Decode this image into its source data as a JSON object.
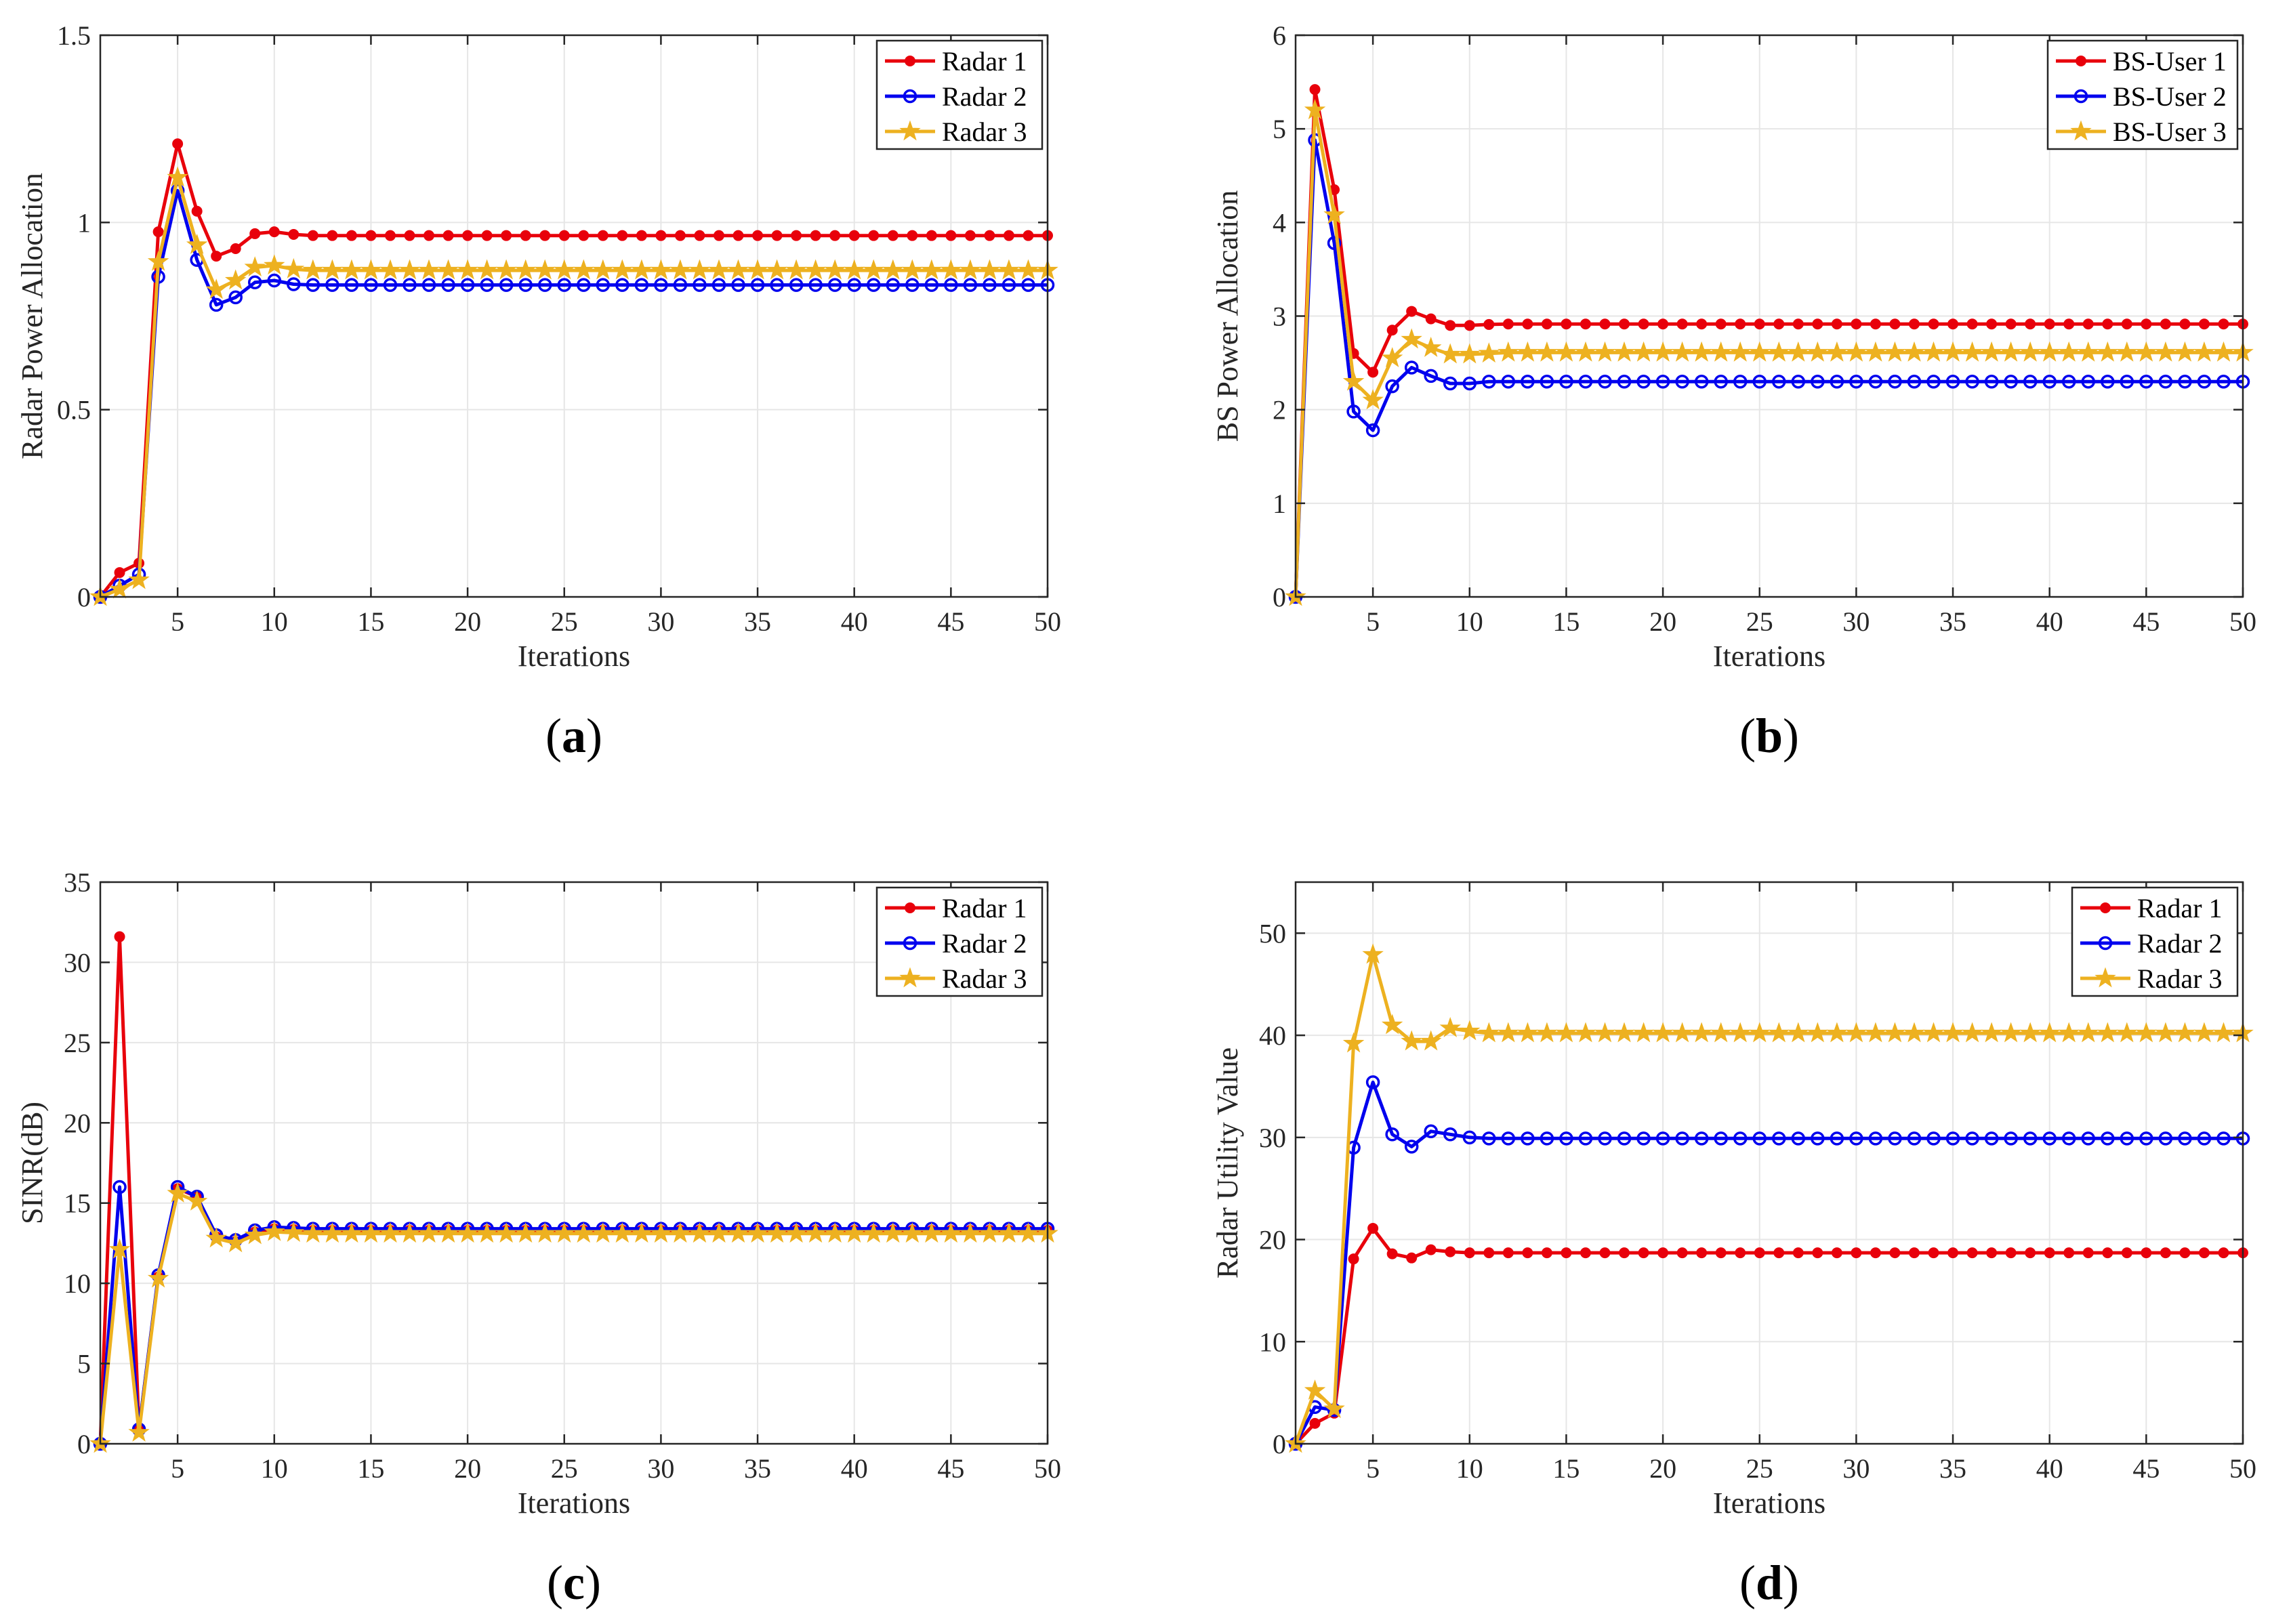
{
  "chart_data": [
    {
      "type": "line",
      "panel": "a",
      "caption_letter": "a",
      "xlabel": "Iterations",
      "ylabel": "Radar Power Allocation",
      "xlim": [
        1,
        50
      ],
      "ylim": [
        0,
        1.5
      ],
      "xticks": [
        5,
        10,
        15,
        20,
        25,
        30,
        35,
        40,
        45,
        50
      ],
      "xtick_labels": [
        "5",
        "10",
        "15",
        "20",
        "25",
        "30",
        "35",
        "40",
        "45",
        "50"
      ],
      "yticks": [
        0,
        0.5,
        1,
        1.5
      ],
      "ytick_labels": [
        "0",
        "0.5",
        "1",
        "1.5"
      ],
      "grid": true,
      "legend_position": "top-right",
      "x_start": 1,
      "series": [
        {
          "name": "Radar 1",
          "color": "#e8000b",
          "marker": "dot",
          "values": [
            0,
            0.065,
            0.09,
            0.975,
            1.21,
            1.03,
            0.91,
            0.93,
            0.97,
            0.975,
            0.968,
            0.965,
            0.965,
            0.965,
            0.965,
            0.965,
            0.965,
            0.965,
            0.965,
            0.965,
            0.965,
            0.965,
            0.965,
            0.965,
            0.965,
            0.965,
            0.965,
            0.965,
            0.965,
            0.965,
            0.965,
            0.965,
            0.965,
            0.965,
            0.965,
            0.965,
            0.965,
            0.965,
            0.965,
            0.965,
            0.965,
            0.965,
            0.965,
            0.965,
            0.965,
            0.965,
            0.965,
            0.965,
            0.965,
            0.965
          ]
        },
        {
          "name": "Radar 2",
          "color": "#0000ee",
          "marker": "circle",
          "values": [
            0,
            0.03,
            0.06,
            0.855,
            1.085,
            0.9,
            0.78,
            0.8,
            0.84,
            0.845,
            0.835,
            0.833,
            0.833,
            0.833,
            0.833,
            0.833,
            0.833,
            0.833,
            0.833,
            0.833,
            0.833,
            0.833,
            0.833,
            0.833,
            0.833,
            0.833,
            0.833,
            0.833,
            0.833,
            0.833,
            0.833,
            0.833,
            0.833,
            0.833,
            0.833,
            0.833,
            0.833,
            0.833,
            0.833,
            0.833,
            0.833,
            0.833,
            0.833,
            0.833,
            0.833,
            0.833,
            0.833,
            0.833,
            0.833,
            0.833
          ]
        },
        {
          "name": "Radar 3",
          "color": "#edb120",
          "marker": "star",
          "values": [
            0,
            0.02,
            0.045,
            0.895,
            1.12,
            0.94,
            0.82,
            0.845,
            0.88,
            0.885,
            0.875,
            0.872,
            0.872,
            0.872,
            0.872,
            0.872,
            0.872,
            0.872,
            0.872,
            0.872,
            0.872,
            0.872,
            0.872,
            0.872,
            0.872,
            0.872,
            0.872,
            0.872,
            0.872,
            0.872,
            0.872,
            0.872,
            0.872,
            0.872,
            0.872,
            0.872,
            0.872,
            0.872,
            0.872,
            0.872,
            0.872,
            0.872,
            0.872,
            0.872,
            0.872,
            0.872,
            0.872,
            0.872,
            0.872,
            0.872
          ]
        }
      ]
    },
    {
      "type": "line",
      "panel": "b",
      "caption_letter": "b",
      "xlabel": "Iterations",
      "ylabel": "BS Power Allocation",
      "xlim": [
        1,
        50
      ],
      "ylim": [
        0,
        6
      ],
      "xticks": [
        5,
        10,
        15,
        20,
        25,
        30,
        35,
        40,
        45,
        50
      ],
      "xtick_labels": [
        "5",
        "10",
        "15",
        "20",
        "25",
        "30",
        "35",
        "40",
        "45",
        "50"
      ],
      "yticks": [
        0,
        1,
        2,
        3,
        4,
        5,
        6
      ],
      "ytick_labels": [
        "0",
        "1",
        "2",
        "3",
        "4",
        "5",
        "6"
      ],
      "grid": true,
      "legend_position": "top-right",
      "x_start": 1,
      "series": [
        {
          "name": "BS-User 1",
          "color": "#e8000b",
          "marker": "dot",
          "values": [
            0,
            5.42,
            4.35,
            2.6,
            2.4,
            2.85,
            3.05,
            2.97,
            2.9,
            2.9,
            2.91,
            2.915,
            2.915,
            2.915,
            2.915,
            2.915,
            2.915,
            2.915,
            2.915,
            2.915,
            2.915,
            2.915,
            2.915,
            2.915,
            2.915,
            2.915,
            2.915,
            2.915,
            2.915,
            2.915,
            2.915,
            2.915,
            2.915,
            2.915,
            2.915,
            2.915,
            2.915,
            2.915,
            2.915,
            2.915,
            2.915,
            2.915,
            2.915,
            2.915,
            2.915,
            2.915,
            2.915,
            2.915,
            2.915,
            2.915
          ]
        },
        {
          "name": "BS-User 2",
          "color": "#0000ee",
          "marker": "circle",
          "values": [
            0,
            4.88,
            3.78,
            1.98,
            1.78,
            2.25,
            2.45,
            2.36,
            2.28,
            2.28,
            2.3,
            2.3,
            2.3,
            2.3,
            2.3,
            2.3,
            2.3,
            2.3,
            2.3,
            2.3,
            2.3,
            2.3,
            2.3,
            2.3,
            2.3,
            2.3,
            2.3,
            2.3,
            2.3,
            2.3,
            2.3,
            2.3,
            2.3,
            2.3,
            2.3,
            2.3,
            2.3,
            2.3,
            2.3,
            2.3,
            2.3,
            2.3,
            2.3,
            2.3,
            2.3,
            2.3,
            2.3,
            2.3,
            2.3,
            2.3
          ]
        },
        {
          "name": "BS-User 3",
          "color": "#edb120",
          "marker": "star",
          "values": [
            0,
            5.2,
            4.08,
            2.3,
            2.1,
            2.55,
            2.75,
            2.66,
            2.59,
            2.59,
            2.6,
            2.61,
            2.61,
            2.61,
            2.61,
            2.61,
            2.61,
            2.61,
            2.61,
            2.61,
            2.61,
            2.61,
            2.61,
            2.61,
            2.61,
            2.61,
            2.61,
            2.61,
            2.61,
            2.61,
            2.61,
            2.61,
            2.61,
            2.61,
            2.61,
            2.61,
            2.61,
            2.61,
            2.61,
            2.61,
            2.61,
            2.61,
            2.61,
            2.61,
            2.61,
            2.61,
            2.61,
            2.61,
            2.61,
            2.61
          ]
        }
      ]
    },
    {
      "type": "line",
      "panel": "c",
      "caption_letter": "c",
      "xlabel": "Iterations",
      "ylabel": "SINR(dB)",
      "xlim": [
        1,
        50
      ],
      "ylim": [
        0,
        35
      ],
      "xticks": [
        5,
        10,
        15,
        20,
        25,
        30,
        35,
        40,
        45,
        50
      ],
      "xtick_labels": [
        "5",
        "10",
        "15",
        "20",
        "25",
        "30",
        "35",
        "40",
        "45",
        "50"
      ],
      "yticks": [
        0,
        5,
        10,
        15,
        20,
        25,
        30,
        35
      ],
      "ytick_labels": [
        "0",
        "5",
        "10",
        "15",
        "20",
        "25",
        "30",
        "35"
      ],
      "grid": true,
      "legend_position": "top-right",
      "x_start": 1,
      "series": [
        {
          "name": "Radar 1",
          "color": "#e8000b",
          "marker": "dot",
          "values": [
            0,
            31.6,
            0.9,
            10.4,
            15.9,
            15.4,
            12.9,
            12.6,
            13.2,
            13.4,
            13.35,
            13.3,
            13.3,
            13.3,
            13.3,
            13.3,
            13.3,
            13.3,
            13.3,
            13.3,
            13.3,
            13.3,
            13.3,
            13.3,
            13.3,
            13.3,
            13.3,
            13.3,
            13.3,
            13.3,
            13.3,
            13.3,
            13.3,
            13.3,
            13.3,
            13.3,
            13.3,
            13.3,
            13.3,
            13.3,
            13.3,
            13.3,
            13.3,
            13.3,
            13.3,
            13.3,
            13.3,
            13.3,
            13.3,
            13.3
          ]
        },
        {
          "name": "Radar 2",
          "color": "#0000ee",
          "marker": "circle",
          "values": [
            0,
            16.0,
            0.9,
            10.5,
            16.0,
            15.4,
            13.0,
            12.7,
            13.3,
            13.5,
            13.45,
            13.4,
            13.4,
            13.4,
            13.4,
            13.4,
            13.4,
            13.4,
            13.4,
            13.4,
            13.4,
            13.4,
            13.4,
            13.4,
            13.4,
            13.4,
            13.4,
            13.4,
            13.4,
            13.4,
            13.4,
            13.4,
            13.4,
            13.4,
            13.4,
            13.4,
            13.4,
            13.4,
            13.4,
            13.4,
            13.4,
            13.4,
            13.4,
            13.4,
            13.4,
            13.4,
            13.4,
            13.4,
            13.4,
            13.4
          ]
        },
        {
          "name": "Radar 3",
          "color": "#edb120",
          "marker": "star",
          "values": [
            0,
            12.1,
            0.7,
            10.3,
            15.6,
            15.1,
            12.8,
            12.5,
            13.0,
            13.2,
            13.15,
            13.1,
            13.1,
            13.1,
            13.1,
            13.1,
            13.1,
            13.1,
            13.1,
            13.1,
            13.1,
            13.1,
            13.1,
            13.1,
            13.1,
            13.1,
            13.1,
            13.1,
            13.1,
            13.1,
            13.1,
            13.1,
            13.1,
            13.1,
            13.1,
            13.1,
            13.1,
            13.1,
            13.1,
            13.1,
            13.1,
            13.1,
            13.1,
            13.1,
            13.1,
            13.1,
            13.1,
            13.1,
            13.1,
            13.1
          ]
        }
      ]
    },
    {
      "type": "line",
      "panel": "d",
      "caption_letter": "d",
      "xlabel": "Iterations",
      "ylabel": "Radar Utility Value",
      "xlim": [
        1,
        50
      ],
      "ylim": [
        0,
        55
      ],
      "xticks": [
        5,
        10,
        15,
        20,
        25,
        30,
        35,
        40,
        45,
        50
      ],
      "xtick_labels": [
        "5",
        "10",
        "15",
        "20",
        "25",
        "30",
        "35",
        "40",
        "45",
        "50"
      ],
      "yticks": [
        0,
        10,
        20,
        30,
        40,
        50
      ],
      "ytick_labels": [
        "0",
        "10",
        "20",
        "30",
        "40",
        "50"
      ],
      "grid": true,
      "legend_position": "top-right",
      "x_start": 1,
      "series": [
        {
          "name": "Radar 1",
          "color": "#e8000b",
          "marker": "dot",
          "values": [
            0,
            2.0,
            3.0,
            18.1,
            21.1,
            18.6,
            18.2,
            19.0,
            18.8,
            18.7,
            18.7,
            18.7,
            18.7,
            18.7,
            18.7,
            18.7,
            18.7,
            18.7,
            18.7,
            18.7,
            18.7,
            18.7,
            18.7,
            18.7,
            18.7,
            18.7,
            18.7,
            18.7,
            18.7,
            18.7,
            18.7,
            18.7,
            18.7,
            18.7,
            18.7,
            18.7,
            18.7,
            18.7,
            18.7,
            18.7,
            18.7,
            18.7,
            18.7,
            18.7,
            18.7,
            18.7,
            18.7,
            18.7,
            18.7,
            18.7
          ]
        },
        {
          "name": "Radar 2",
          "color": "#0000ee",
          "marker": "circle",
          "values": [
            0,
            3.6,
            3.3,
            29.0,
            35.4,
            30.3,
            29.1,
            30.6,
            30.3,
            30.0,
            29.9,
            29.9,
            29.9,
            29.9,
            29.9,
            29.9,
            29.9,
            29.9,
            29.9,
            29.9,
            29.9,
            29.9,
            29.9,
            29.9,
            29.9,
            29.9,
            29.9,
            29.9,
            29.9,
            29.9,
            29.9,
            29.9,
            29.9,
            29.9,
            29.9,
            29.9,
            29.9,
            29.9,
            29.9,
            29.9,
            29.9,
            29.9,
            29.9,
            29.9,
            29.9,
            29.9,
            29.9,
            29.9,
            29.9,
            29.9
          ]
        },
        {
          "name": "Radar 3",
          "color": "#edb120",
          "marker": "star",
          "values": [
            0,
            5.2,
            3.4,
            39.2,
            47.9,
            41.0,
            39.4,
            39.4,
            40.7,
            40.4,
            40.2,
            40.2,
            40.2,
            40.2,
            40.2,
            40.2,
            40.2,
            40.2,
            40.2,
            40.2,
            40.2,
            40.2,
            40.2,
            40.2,
            40.2,
            40.2,
            40.2,
            40.2,
            40.2,
            40.2,
            40.2,
            40.2,
            40.2,
            40.2,
            40.2,
            40.2,
            40.2,
            40.2,
            40.2,
            40.2,
            40.2,
            40.2,
            40.2,
            40.2,
            40.2,
            40.2,
            40.2,
            40.2,
            40.2,
            40.2
          ]
        }
      ]
    }
  ]
}
